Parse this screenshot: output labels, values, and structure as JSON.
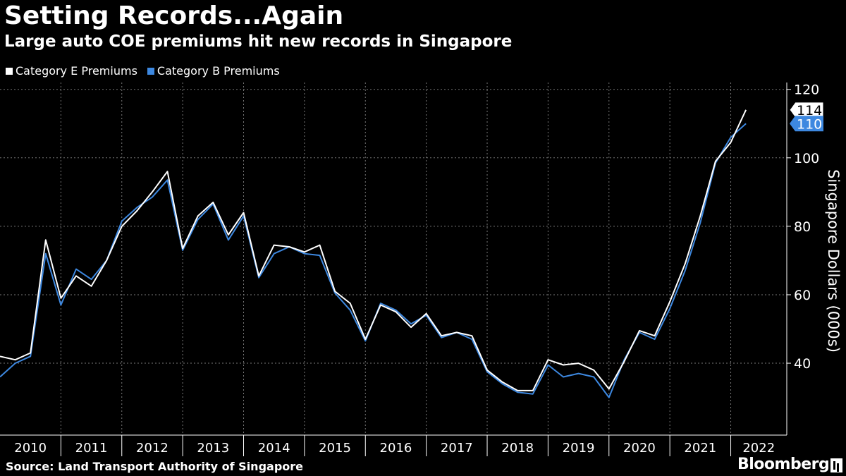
{
  "header": {
    "title": "Setting Records...Again",
    "subtitle": "Large auto COE premiums hit new records in Singapore"
  },
  "footer": {
    "source": "Source: Land Transport Authority of Singapore",
    "brand": "Bloomberg"
  },
  "colors": {
    "background": "#000000",
    "category_e": "#ffffff",
    "category_b": "#3d88e0",
    "grid": "#777777"
  },
  "chart_data": {
    "type": "line",
    "title": "Setting Records...Again",
    "subtitle": "Large auto COE premiums hit new records in Singapore",
    "ylabel": "Singapore Dollars (000s)",
    "xlabel": "",
    "xlim": [
      2010,
      2022.92
    ],
    "ylim": [
      19,
      122
    ],
    "y_ticks": [
      40,
      60,
      80,
      100,
      120
    ],
    "x_tick_labels": [
      "2010",
      "2011",
      "2012",
      "2013",
      "2014",
      "2015",
      "2016",
      "2017",
      "2018",
      "2019",
      "2020",
      "2021",
      "2022"
    ],
    "y_axis_position": "right",
    "grid": true,
    "legend_position": "top-left",
    "series": [
      {
        "name": "Category E Premiums",
        "color": "#ffffff",
        "end_label": "114",
        "points": [
          [
            2010.0,
            42
          ],
          [
            2010.25,
            41
          ],
          [
            2010.5,
            43
          ],
          [
            2010.75,
            76
          ],
          [
            2011.0,
            59
          ],
          [
            2011.25,
            65.5
          ],
          [
            2011.5,
            62.5
          ],
          [
            2011.75,
            70
          ],
          [
            2012.0,
            80
          ],
          [
            2012.25,
            84.5
          ],
          [
            2012.5,
            90
          ],
          [
            2012.75,
            96
          ],
          [
            2013.0,
            73.5
          ],
          [
            2013.25,
            83
          ],
          [
            2013.5,
            87
          ],
          [
            2013.75,
            77.5
          ],
          [
            2014.0,
            84
          ],
          [
            2014.25,
            65.5
          ],
          [
            2014.5,
            74.5
          ],
          [
            2014.75,
            74
          ],
          [
            2015.0,
            72.5
          ],
          [
            2015.25,
            74.5
          ],
          [
            2015.5,
            61
          ],
          [
            2015.75,
            57.5
          ],
          [
            2016.0,
            47
          ],
          [
            2016.25,
            57
          ],
          [
            2016.5,
            55
          ],
          [
            2016.75,
            50.5
          ],
          [
            2017.0,
            54.5
          ],
          [
            2017.25,
            48
          ],
          [
            2017.5,
            49
          ],
          [
            2017.75,
            48
          ],
          [
            2018.0,
            38
          ],
          [
            2018.25,
            34.5
          ],
          [
            2018.5,
            32
          ],
          [
            2018.75,
            32
          ],
          [
            2019.0,
            41
          ],
          [
            2019.25,
            39.5
          ],
          [
            2019.5,
            40
          ],
          [
            2019.75,
            38
          ],
          [
            2020.0,
            32.5
          ],
          [
            2020.25,
            40.5
          ],
          [
            2020.5,
            49.5
          ],
          [
            2020.75,
            48
          ],
          [
            2021.0,
            58
          ],
          [
            2021.25,
            69
          ],
          [
            2021.5,
            83
          ],
          [
            2021.75,
            99
          ],
          [
            2022.0,
            104.5
          ],
          [
            2022.25,
            114
          ]
        ]
      },
      {
        "name": "Category B Premiums",
        "color": "#3d88e0",
        "end_label": "110",
        "points": [
          [
            2010.0,
            36
          ],
          [
            2010.25,
            40
          ],
          [
            2010.5,
            42
          ],
          [
            2010.75,
            72
          ],
          [
            2011.0,
            57
          ],
          [
            2011.25,
            67.5
          ],
          [
            2011.5,
            64.5
          ],
          [
            2011.75,
            70
          ],
          [
            2012.0,
            81.5
          ],
          [
            2012.25,
            85.5
          ],
          [
            2012.5,
            88.5
          ],
          [
            2012.75,
            93.5
          ],
          [
            2013.0,
            73
          ],
          [
            2013.25,
            82
          ],
          [
            2013.5,
            86.5
          ],
          [
            2013.75,
            76
          ],
          [
            2014.0,
            83
          ],
          [
            2014.25,
            65
          ],
          [
            2014.5,
            72
          ],
          [
            2014.75,
            74
          ],
          [
            2015.0,
            72
          ],
          [
            2015.25,
            71.5
          ],
          [
            2015.5,
            60.5
          ],
          [
            2015.75,
            55.5
          ],
          [
            2016.0,
            46.5
          ],
          [
            2016.25,
            57.5
          ],
          [
            2016.5,
            55.5
          ],
          [
            2016.75,
            51.5
          ],
          [
            2017.0,
            54
          ],
          [
            2017.25,
            47.5
          ],
          [
            2017.5,
            49
          ],
          [
            2017.75,
            47
          ],
          [
            2018.0,
            37.5
          ],
          [
            2018.25,
            34
          ],
          [
            2018.5,
            31.5
          ],
          [
            2018.75,
            31
          ],
          [
            2019.0,
            39.5
          ],
          [
            2019.25,
            36
          ],
          [
            2019.5,
            37
          ],
          [
            2019.75,
            36
          ],
          [
            2020.0,
            30
          ],
          [
            2020.25,
            41
          ],
          [
            2020.5,
            49
          ],
          [
            2020.75,
            47
          ],
          [
            2021.0,
            56
          ],
          [
            2021.25,
            67
          ],
          [
            2021.5,
            81
          ],
          [
            2021.75,
            98.5
          ],
          [
            2022.0,
            106
          ],
          [
            2022.25,
            110
          ]
        ]
      }
    ]
  }
}
